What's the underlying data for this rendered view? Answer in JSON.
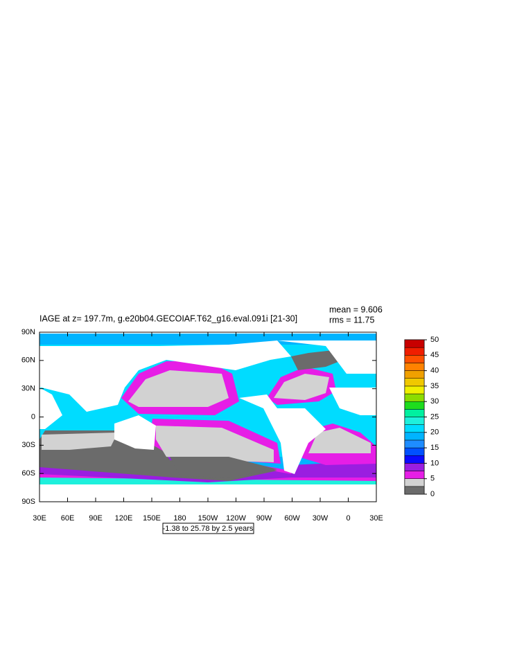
{
  "chart_data": {
    "type": "contour-map",
    "title": "IAGE at z= 197.7m, g.e20b04.GECOIAF.T62_g16.eval.091i [21-30]",
    "mean": "mean = 9.606",
    "rms": "rms = 11.75",
    "info_label": "-1.38 to 25.78 by 2.5 years",
    "xlim": [
      30,
      390
    ],
    "ylim": [
      -90,
      90
    ],
    "xticks": [
      {
        "value": 30,
        "label": "30E"
      },
      {
        "value": 60,
        "label": "60E"
      },
      {
        "value": 90,
        "label": "90E"
      },
      {
        "value": 120,
        "label": "120E"
      },
      {
        "value": 150,
        "label": "150E"
      },
      180,
      {
        "value": 210,
        "label": "150W"
      },
      {
        "value": 240,
        "label": "120W"
      },
      {
        "value": 270,
        "label": "90W"
      },
      {
        "value": 300,
        "label": "60W"
      },
      {
        "value": 330,
        "label": "30W"
      },
      {
        "value": 360,
        "label": "0"
      },
      {
        "value": 390,
        "label": "30E"
      }
    ],
    "yticks": [
      {
        "value": 90,
        "label": "90N"
      },
      {
        "value": 60,
        "label": "60N"
      },
      {
        "value": 30,
        "label": "30N"
      },
      0,
      {
        "value": -30,
        "label": "30S"
      },
      {
        "value": -60,
        "label": "60S"
      },
      {
        "value": -90,
        "label": "90S"
      }
    ],
    "colorbar": {
      "lim": [
        0,
        50
      ],
      "ticks": [
        0,
        5,
        10,
        15,
        20,
        25,
        30,
        35,
        40,
        45,
        50
      ],
      "colors": [
        "#6b6b6b",
        "#d2d2d2",
        "#e61ee6",
        "#9a1ee0",
        "#0a0aff",
        "#0050ff",
        "#1e8cff",
        "#00b4ff",
        "#00dcff",
        "#1ef0dc",
        "#00f0a0",
        "#1edc1e",
        "#8cdc00",
        "#f0f000",
        "#f0c800",
        "#f0a000",
        "#ff8200",
        "#ff5000",
        "#f01e00",
        "#c80000"
      ]
    }
  }
}
